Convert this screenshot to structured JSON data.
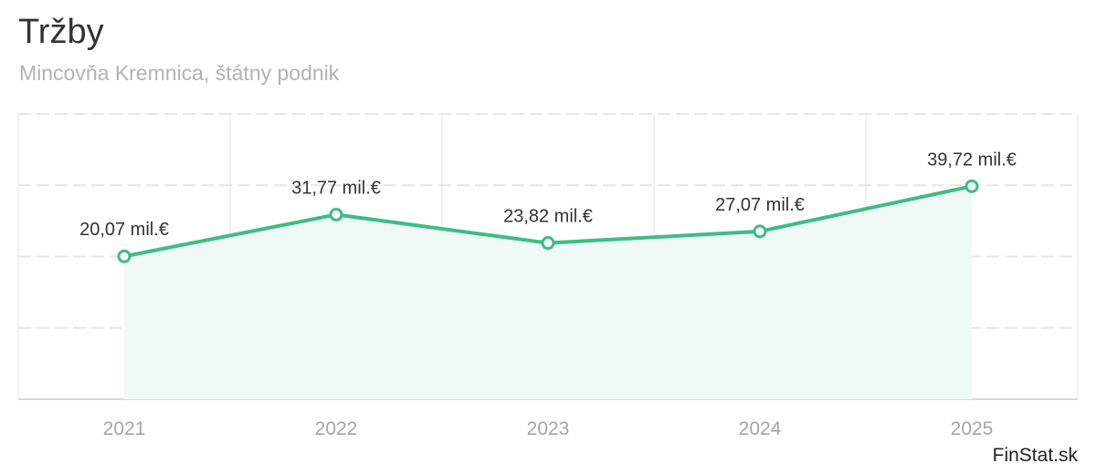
{
  "header": {
    "title": "Tržby",
    "subtitle": "Mincovňa Kremnica, štátny podnik"
  },
  "credit": "FinStat.sk",
  "colors": {
    "line": "#3dbd84",
    "area": "#f0faf5",
    "grid": "#e6e6e6",
    "axis_text": "#a6a6a6",
    "label_text": "#333333"
  },
  "chart_data": {
    "type": "area",
    "title": "Tržby",
    "subtitle": "Mincovňa Kremnica, štátny podnik",
    "xlabel": "",
    "ylabel": "",
    "categories": [
      "2021",
      "2022",
      "2023",
      "2024",
      "2025"
    ],
    "series": [
      {
        "values": [
          20.07,
          31.77,
          23.82,
          27.07,
          39.72
        ],
        "labels": [
          "20,07 mil.€",
          "31,77 mil.€",
          "23,82 mil.€",
          "27,07 mil.€",
          "39,72 mil.€"
        ]
      }
    ],
    "unit": "mil.€",
    "ylim": [
      -20,
      60
    ],
    "grid": true,
    "legend": "none"
  }
}
